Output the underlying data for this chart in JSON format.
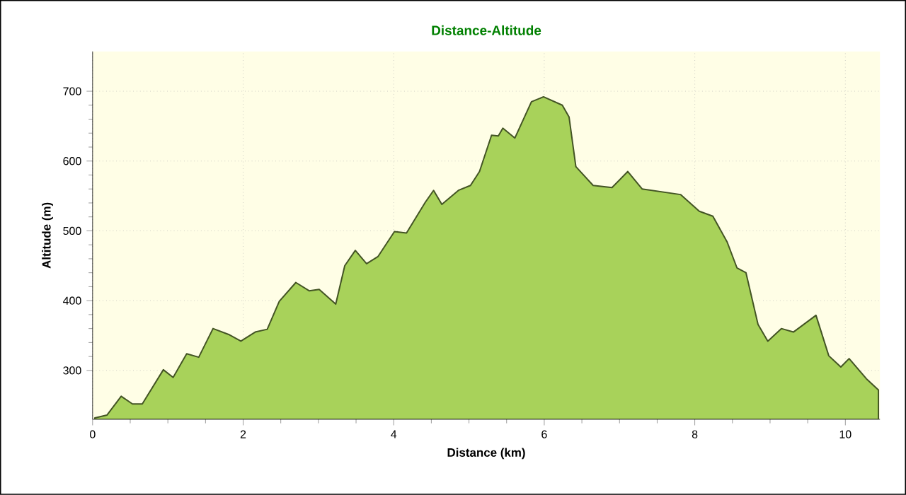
{
  "chart_data": {
    "type": "area",
    "title": "Distance-Altitude",
    "xlabel": "Distance (km)",
    "ylabel": "Altitude (m)",
    "xlim": [
      0,
      10.46
    ],
    "ylim": [
      230,
      757
    ],
    "xticks": [
      0,
      2,
      4,
      6,
      8,
      10
    ],
    "yticks": [
      300,
      400,
      500,
      600,
      700
    ],
    "grid": true,
    "series": [
      {
        "color": "#a8d25a",
        "x": [
          0.03,
          0.19,
          0.38,
          0.53,
          0.66,
          0.94,
          1.07,
          1.25,
          1.41,
          1.6,
          1.82,
          1.97,
          2.16,
          2.32,
          2.48,
          2.7,
          2.88,
          3.01,
          3.23,
          3.35,
          3.49,
          3.64,
          3.79,
          4.01,
          4.17,
          4.42,
          4.53,
          4.64,
          4.86,
          5.02,
          5.14,
          5.3,
          5.39,
          5.45,
          5.61,
          5.83,
          5.99,
          6.24,
          6.33,
          6.42,
          6.65,
          6.9,
          7.11,
          7.3,
          7.81,
          8.06,
          8.24,
          8.43,
          8.56,
          8.68,
          8.84,
          8.97,
          9.15,
          9.31,
          9.61,
          9.78,
          9.94,
          10.05,
          10.28,
          10.44
        ],
        "values": [
          232,
          236,
          263,
          252,
          252,
          301,
          290,
          324,
          319,
          360,
          351,
          342,
          355,
          359,
          399,
          426,
          414,
          416,
          395,
          450,
          472,
          453,
          463,
          499,
          497,
          541,
          558,
          538,
          558,
          565,
          585,
          637,
          636,
          647,
          633,
          685,
          692,
          680,
          663,
          592,
          565,
          562,
          585,
          560,
          552,
          528,
          521,
          484,
          447,
          440,
          366,
          342,
          360,
          355,
          379,
          321,
          305,
          317,
          288,
          272
        ]
      }
    ]
  }
}
